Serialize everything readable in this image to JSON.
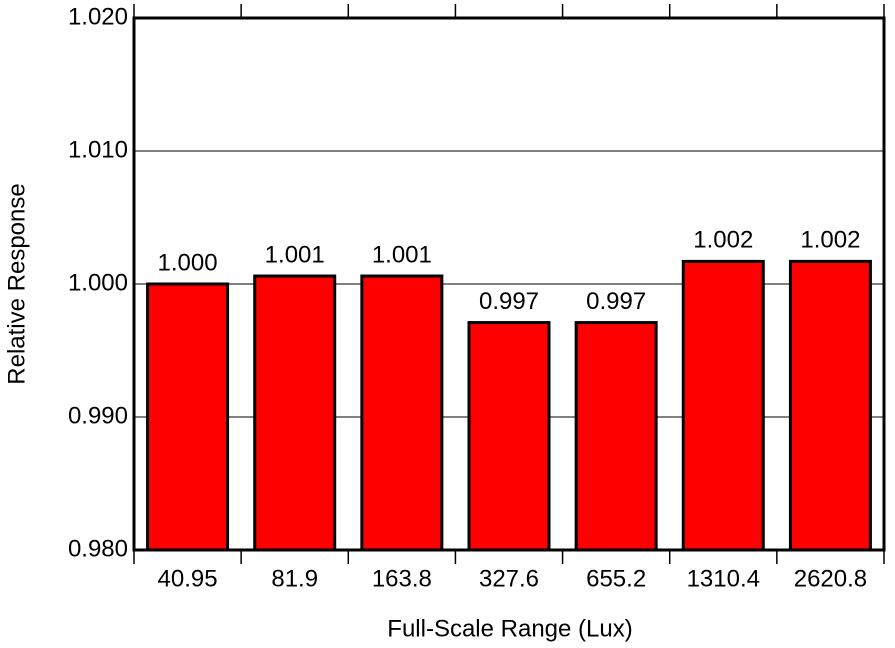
{
  "chart_data": {
    "type": "bar",
    "x_label": "Full-Scale Range (Lux)",
    "y_label": "Relative Response",
    "categories": [
      "40.95",
      "81.9",
      "163.8",
      "327.6",
      "655.2",
      "1310.4",
      "2620.8"
    ],
    "values": [
      1.0,
      1.0006,
      1.0006,
      0.9971,
      0.9971,
      1.0017,
      1.0017
    ],
    "value_labels": [
      "1.000",
      "1.001",
      "1.001",
      "0.997",
      "0.997",
      "1.002",
      "1.002"
    ],
    "color": "#ff0000",
    "ylim": [
      0.98,
      1.02
    ],
    "yticks": [
      {
        "value": 0.98,
        "label": "0.980"
      },
      {
        "value": 0.99,
        "label": "0.990"
      },
      {
        "value": 1.0,
        "label": "1.000"
      },
      {
        "value": 1.01,
        "label": "1.010"
      },
      {
        "value": 1.02,
        "label": "1.020"
      }
    ],
    "grid": true
  }
}
